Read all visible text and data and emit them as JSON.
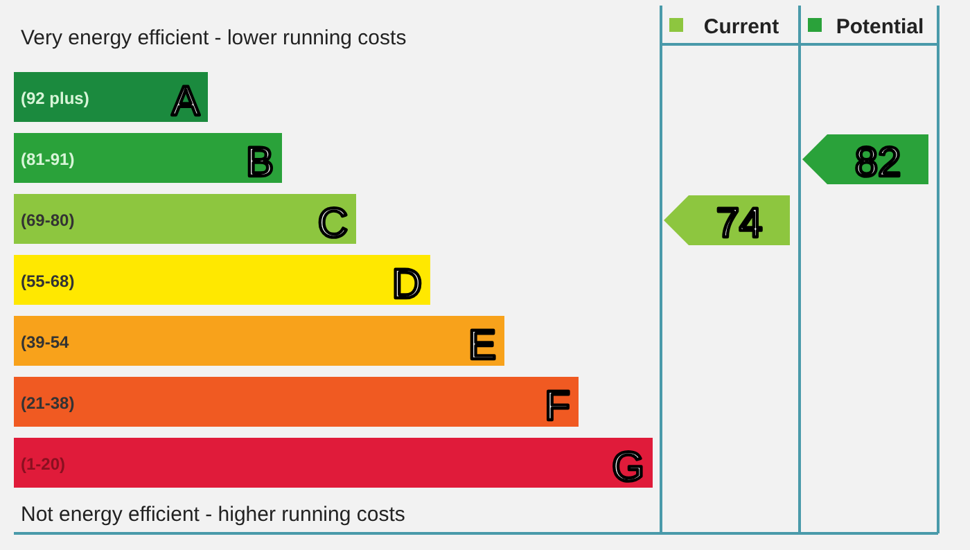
{
  "chart_data": {
    "type": "other",
    "title": "Very energy efficient - lower running costs",
    "annotations": [
      "Not energy efficient - higher running costs"
    ],
    "categories": [
      "A",
      "B",
      "C",
      "D",
      "E",
      "F",
      "G"
    ],
    "value_labels": [
      "(92 plus)",
      "(81-91)",
      "(69-80)",
      "(55-68)",
      "(39-54",
      "(21-38)",
      "(1-20)"
    ],
    "colors": [
      "#1b8a3e",
      "#2aa23a",
      "#8dc63f",
      "#ffe800",
      "#f8a21b",
      "#f05a22",
      "#e01b3a"
    ],
    "series": [
      {
        "name": "Current",
        "color": "#8dc63f",
        "values": [
          null,
          null,
          74,
          null,
          null,
          null,
          null
        ]
      },
      {
        "name": "Potential",
        "color": "#2aa23a",
        "values": [
          null,
          82,
          null,
          null,
          null,
          null,
          null
        ]
      }
    ],
    "data_labels": true,
    "legend": "top right"
  }
}
